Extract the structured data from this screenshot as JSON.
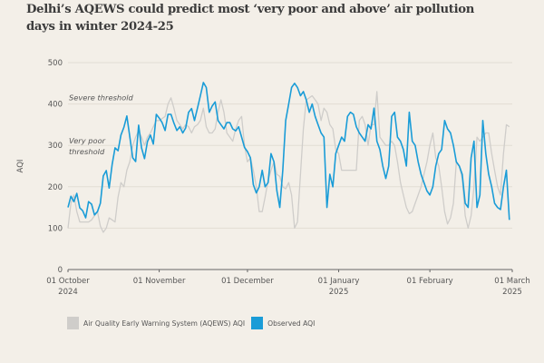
{
  "chart_data": {
    "type": "line",
    "title": "Delhi’s AQEWS could predict most ‘very poor and above’ air pollution days in winter 2024-25",
    "xlabel": "",
    "ylabel": "AQI",
    "ylim": [
      0,
      500
    ],
    "yticks": [
      "0",
      "100",
      "200",
      "300",
      "400",
      "500"
    ],
    "ytick_values": [
      0,
      100,
      200,
      300,
      400,
      500
    ],
    "x_start": "2024-10-01",
    "x_end": "2025-03-01",
    "xticks": [
      {
        "day": 0,
        "line1": "01 October",
        "line2": "2024"
      },
      {
        "day": 31,
        "line1": "01 November",
        "line2": ""
      },
      {
        "day": 61,
        "line1": "01 December",
        "line2": ""
      },
      {
        "day": 92,
        "line1": "01 January",
        "line2": "2025"
      },
      {
        "day": 123,
        "line1": "01 February",
        "line2": ""
      },
      {
        "day": 151,
        "line1": "01 March",
        "line2": "2025"
      }
    ],
    "grid": true,
    "annotations": [
      {
        "text": "Severe threshold",
        "value": 400
      },
      {
        "text": "Very poor",
        "text2": "threshold",
        "value": 300
      }
    ],
    "legend_position": "bottom-left",
    "series": [
      {
        "name": "Air Quality Early Warning System (AQEWS) AQI",
        "color": "#cfcdca",
        "values": [
          100,
          160,
          180,
          140,
          115,
          115,
          115,
          115,
          120,
          130,
          140,
          105,
          90,
          100,
          125,
          120,
          115,
          175,
          210,
          200,
          240,
          260,
          300,
          320,
          335,
          320,
          300,
          320,
          330,
          345,
          360,
          360,
          365,
          370,
          400,
          415,
          390,
          360,
          350,
          340,
          350,
          345,
          330,
          345,
          350,
          360,
          390,
          345,
          330,
          330,
          340,
          380,
          410,
          380,
          330,
          320,
          310,
          340,
          360,
          370,
          300,
          260,
          270,
          240,
          200,
          140,
          140,
          175,
          215,
          240,
          260,
          230,
          225,
          200,
          195,
          210,
          180,
          100,
          115,
          230,
          340,
          410,
          415,
          420,
          410,
          400,
          360,
          390,
          380,
          350,
          340,
          290,
          280,
          240,
          240,
          240,
          240,
          240,
          240,
          360,
          370,
          350,
          300,
          350,
          350,
          430,
          320,
          310,
          300,
          300,
          310,
          300,
          260,
          210,
          180,
          150,
          135,
          140,
          160,
          180,
          200,
          230,
          260,
          300,
          330,
          270,
          250,
          200,
          140,
          110,
          125,
          160,
          260,
          250,
          220,
          130,
          100,
          130,
          200,
          320,
          310,
          320,
          330,
          330,
          280,
          240,
          200,
          180,
          280,
          350,
          345
        ]
      },
      {
        "name": "Observed AQI",
        "color": "#1a9cd7",
        "values": [
          150,
          177,
          164,
          184,
          149,
          142,
          125,
          164,
          158,
          132,
          140,
          160,
          226,
          239,
          197,
          254,
          294,
          287,
          325,
          344,
          371,
          322,
          270,
          261,
          349,
          294,
          268,
          309,
          325,
          303,
          375,
          366,
          355,
          336,
          375,
          375,
          354,
          336,
          345,
          330,
          342,
          380,
          389,
          360,
          390,
          420,
          452,
          440,
          380,
          395,
          405,
          360,
          350,
          340,
          355,
          355,
          340,
          335,
          345,
          320,
          295,
          285,
          270,
          205,
          185,
          200,
          240,
          200,
          210,
          280,
          260,
          190,
          150,
          240,
          360,
          400,
          440,
          450,
          440,
          420,
          430,
          410,
          380,
          400,
          370,
          350,
          330,
          320,
          150,
          230,
          200,
          280,
          300,
          320,
          310,
          370,
          380,
          375,
          345,
          330,
          320,
          310,
          350,
          340,
          390,
          310,
          290,
          250,
          220,
          250,
          370,
          380,
          320,
          310,
          290,
          250,
          380,
          310,
          300,
          260,
          230,
          210,
          190,
          180,
          200,
          250,
          280,
          290,
          360,
          340,
          330,
          300,
          260,
          250,
          230,
          160,
          150,
          270,
          310,
          150,
          180,
          360,
          280,
          230,
          200,
          160,
          150,
          145,
          200,
          240,
          120
        ]
      }
    ]
  },
  "legend": {
    "items": [
      {
        "label": "Air Quality Early Warning System (AQEWS) AQI",
        "color": "#cfcdca"
      },
      {
        "label": "Observed AQI",
        "color": "#1a9cd7"
      }
    ]
  }
}
